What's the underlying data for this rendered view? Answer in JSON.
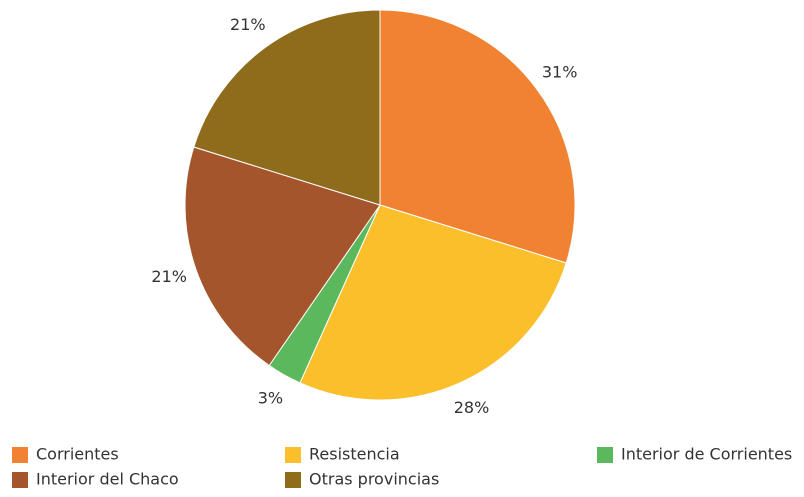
{
  "chart_data": {
    "type": "pie",
    "categories": [
      "Corrientes",
      "Resistencia",
      "Interior de Corrientes",
      "Interior del Chaco",
      "Otras provincias"
    ],
    "values": [
      31,
      28,
      3,
      21,
      21
    ],
    "value_labels": [
      "31%",
      "28%",
      "3%",
      "21%",
      "21%"
    ],
    "colors": [
      "#f08232",
      "#fbbf2c",
      "#5cb85c",
      "#a5552c",
      "#8f6b1c"
    ],
    "legend": "bottom"
  }
}
